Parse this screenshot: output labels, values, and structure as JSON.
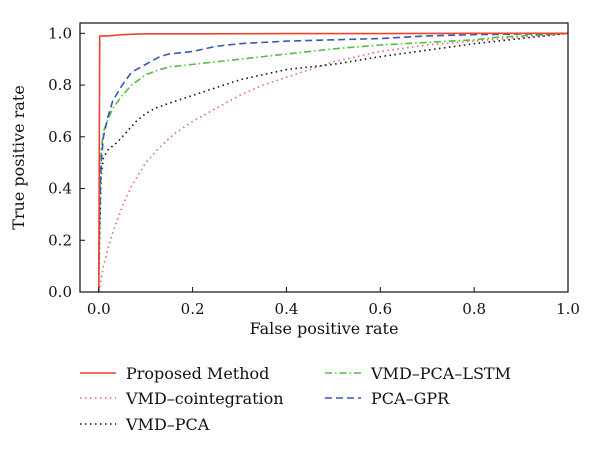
{
  "chart_data": {
    "type": "line",
    "xlabel": "False positive rate",
    "ylabel": "True positive rate",
    "xlim": [
      -0.04,
      1.0
    ],
    "ylim": [
      0.0,
      1.04
    ],
    "x_ticks": [
      {
        "value": 0.0,
        "label": "0.0"
      },
      {
        "value": 0.2,
        "label": "0.2"
      },
      {
        "value": 0.4,
        "label": "0.4"
      },
      {
        "value": 0.6,
        "label": "0.6"
      },
      {
        "value": 0.8,
        "label": "0.8"
      },
      {
        "value": 1.0,
        "label": "1.0"
      }
    ],
    "y_ticks": [
      {
        "value": 0.0,
        "label": "0.0"
      },
      {
        "value": 0.2,
        "label": "0.2"
      },
      {
        "value": 0.4,
        "label": "0.4"
      },
      {
        "value": 0.6,
        "label": "0.6"
      },
      {
        "value": 0.8,
        "label": "0.8"
      },
      {
        "value": 1.0,
        "label": "1.0"
      }
    ],
    "grid": false,
    "legend_position": "below",
    "series": [
      {
        "name": "Proposed Method",
        "color": "#e8452a",
        "dash": "solid",
        "points": [
          [
            0,
            0
          ],
          [
            0.001,
            0.5
          ],
          [
            0.002,
            0.99
          ],
          [
            0.02,
            0.99
          ],
          [
            0.05,
            0.995
          ],
          [
            0.1,
            0.998
          ],
          [
            0.2,
            0.998
          ],
          [
            0.4,
            0.999
          ],
          [
            0.6,
            0.999
          ],
          [
            0.8,
            1.0
          ],
          [
            1.0,
            1.0
          ]
        ]
      },
      {
        "name": "VMD–cointegration",
        "color": "#e06a6a",
        "dash": "dotted",
        "points": [
          [
            0,
            0
          ],
          [
            0.005,
            0.05
          ],
          [
            0.01,
            0.1
          ],
          [
            0.02,
            0.17
          ],
          [
            0.03,
            0.23
          ],
          [
            0.05,
            0.33
          ],
          [
            0.07,
            0.41
          ],
          [
            0.1,
            0.5
          ],
          [
            0.13,
            0.56
          ],
          [
            0.16,
            0.61
          ],
          [
            0.2,
            0.66
          ],
          [
            0.25,
            0.71
          ],
          [
            0.3,
            0.76
          ],
          [
            0.35,
            0.8
          ],
          [
            0.4,
            0.83
          ],
          [
            0.45,
            0.86
          ],
          [
            0.5,
            0.89
          ],
          [
            0.55,
            0.91
          ],
          [
            0.6,
            0.93
          ],
          [
            0.7,
            0.955
          ],
          [
            0.8,
            0.97
          ],
          [
            0.9,
            0.985
          ],
          [
            1.0,
            1.0
          ]
        ]
      },
      {
        "name": "VMD–PCA",
        "color": "#111111",
        "dash": "dotted",
        "points": [
          [
            0,
            0.05
          ],
          [
            0.003,
            0.3
          ],
          [
            0.005,
            0.45
          ],
          [
            0.01,
            0.52
          ],
          [
            0.02,
            0.55
          ],
          [
            0.04,
            0.58
          ],
          [
            0.06,
            0.62
          ],
          [
            0.08,
            0.66
          ],
          [
            0.1,
            0.69
          ],
          [
            0.12,
            0.71
          ],
          [
            0.15,
            0.73
          ],
          [
            0.2,
            0.76
          ],
          [
            0.25,
            0.79
          ],
          [
            0.3,
            0.82
          ],
          [
            0.35,
            0.84
          ],
          [
            0.4,
            0.86
          ],
          [
            0.45,
            0.87
          ],
          [
            0.5,
            0.88
          ],
          [
            0.6,
            0.91
          ],
          [
            0.7,
            0.935
          ],
          [
            0.8,
            0.96
          ],
          [
            0.85,
            0.97
          ],
          [
            0.9,
            0.98
          ],
          [
            0.95,
            0.99
          ],
          [
            1.0,
            1.0
          ]
        ]
      },
      {
        "name": "VMD–PCA–LSTM",
        "color": "#4fbf3f",
        "dash": "dashdot",
        "points": [
          [
            0,
            0.12
          ],
          [
            0.003,
            0.4
          ],
          [
            0.005,
            0.55
          ],
          [
            0.01,
            0.62
          ],
          [
            0.02,
            0.67
          ],
          [
            0.03,
            0.71
          ],
          [
            0.05,
            0.76
          ],
          [
            0.07,
            0.8
          ],
          [
            0.1,
            0.84
          ],
          [
            0.13,
            0.86
          ],
          [
            0.15,
            0.87
          ],
          [
            0.2,
            0.88
          ],
          [
            0.25,
            0.89
          ],
          [
            0.3,
            0.9
          ],
          [
            0.35,
            0.91
          ],
          [
            0.4,
            0.92
          ],
          [
            0.5,
            0.94
          ],
          [
            0.6,
            0.955
          ],
          [
            0.7,
            0.965
          ],
          [
            0.8,
            0.975
          ],
          [
            0.85,
            0.985
          ],
          [
            0.9,
            0.99
          ],
          [
            1.0,
            1.0
          ]
        ]
      },
      {
        "name": "PCA–GPR",
        "color": "#3a55b8",
        "dash": "dashed",
        "points": [
          [
            0,
            0.08
          ],
          [
            0.002,
            0.3
          ],
          [
            0.005,
            0.5
          ],
          [
            0.01,
            0.6
          ],
          [
            0.02,
            0.68
          ],
          [
            0.03,
            0.74
          ],
          [
            0.05,
            0.8
          ],
          [
            0.07,
            0.85
          ],
          [
            0.1,
            0.88
          ],
          [
            0.13,
            0.91
          ],
          [
            0.15,
            0.92
          ],
          [
            0.2,
            0.93
          ],
          [
            0.25,
            0.95
          ],
          [
            0.3,
            0.96
          ],
          [
            0.4,
            0.97
          ],
          [
            0.5,
            0.975
          ],
          [
            0.6,
            0.98
          ],
          [
            0.7,
            0.99
          ],
          [
            0.8,
            0.995
          ],
          [
            1.0,
            1.0
          ]
        ]
      }
    ]
  }
}
